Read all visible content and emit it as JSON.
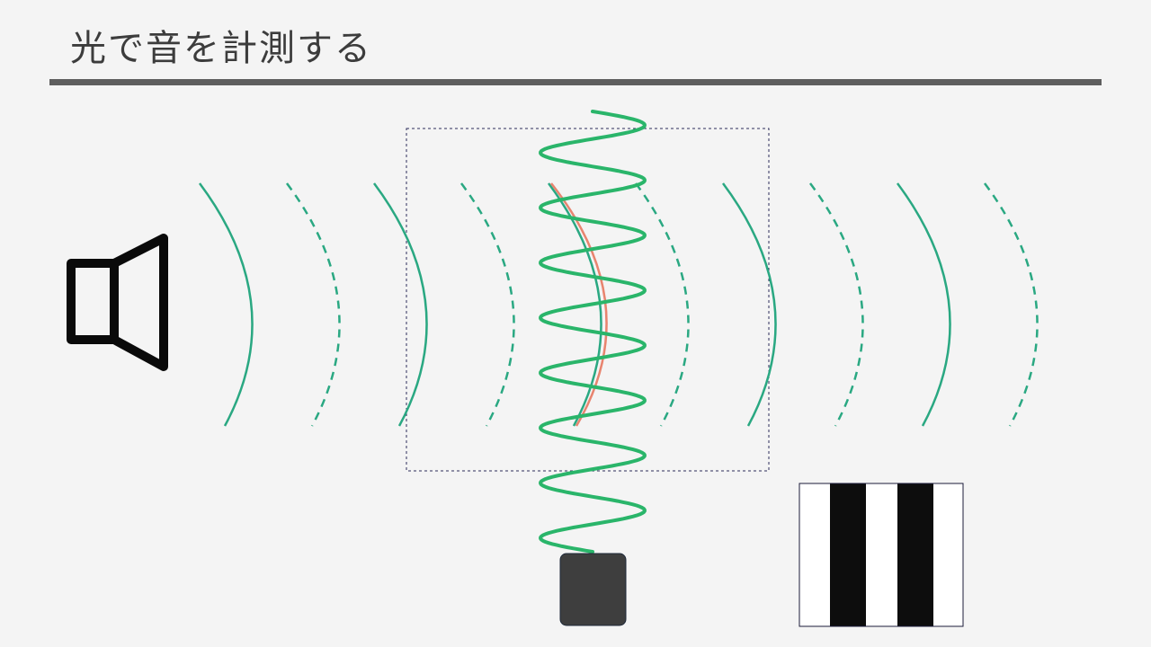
{
  "slide": {
    "title": "光で音を計測する"
  },
  "colors": {
    "background": "#f4f4f4",
    "title_text": "#3c3c3c",
    "title_rule": "#5e5e5e",
    "sound_wave": "#2aa882",
    "laser_beam": "#2ab56a",
    "probe_wavefront": "#e8846f",
    "speaker": "#0a0a0a",
    "laser_source": "#3e3e3e",
    "measurement_box": "#2b2b5a",
    "fringe_dark": "#0d0d0d",
    "fringe_light": "#ffffff"
  },
  "icons": {
    "speaker": "speaker-icon",
    "laser_source": "laser-source-icon",
    "fringe_pattern": "interference-fringe-icon"
  },
  "sound_wavefronts": {
    "pattern": [
      "solid",
      "dashed",
      "solid",
      "dashed",
      "solid",
      "dashed",
      "solid",
      "dashed",
      "solid",
      "dashed"
    ]
  },
  "fringe_pattern": {
    "stripes": [
      "light",
      "dark",
      "light",
      "dark",
      "light"
    ]
  }
}
